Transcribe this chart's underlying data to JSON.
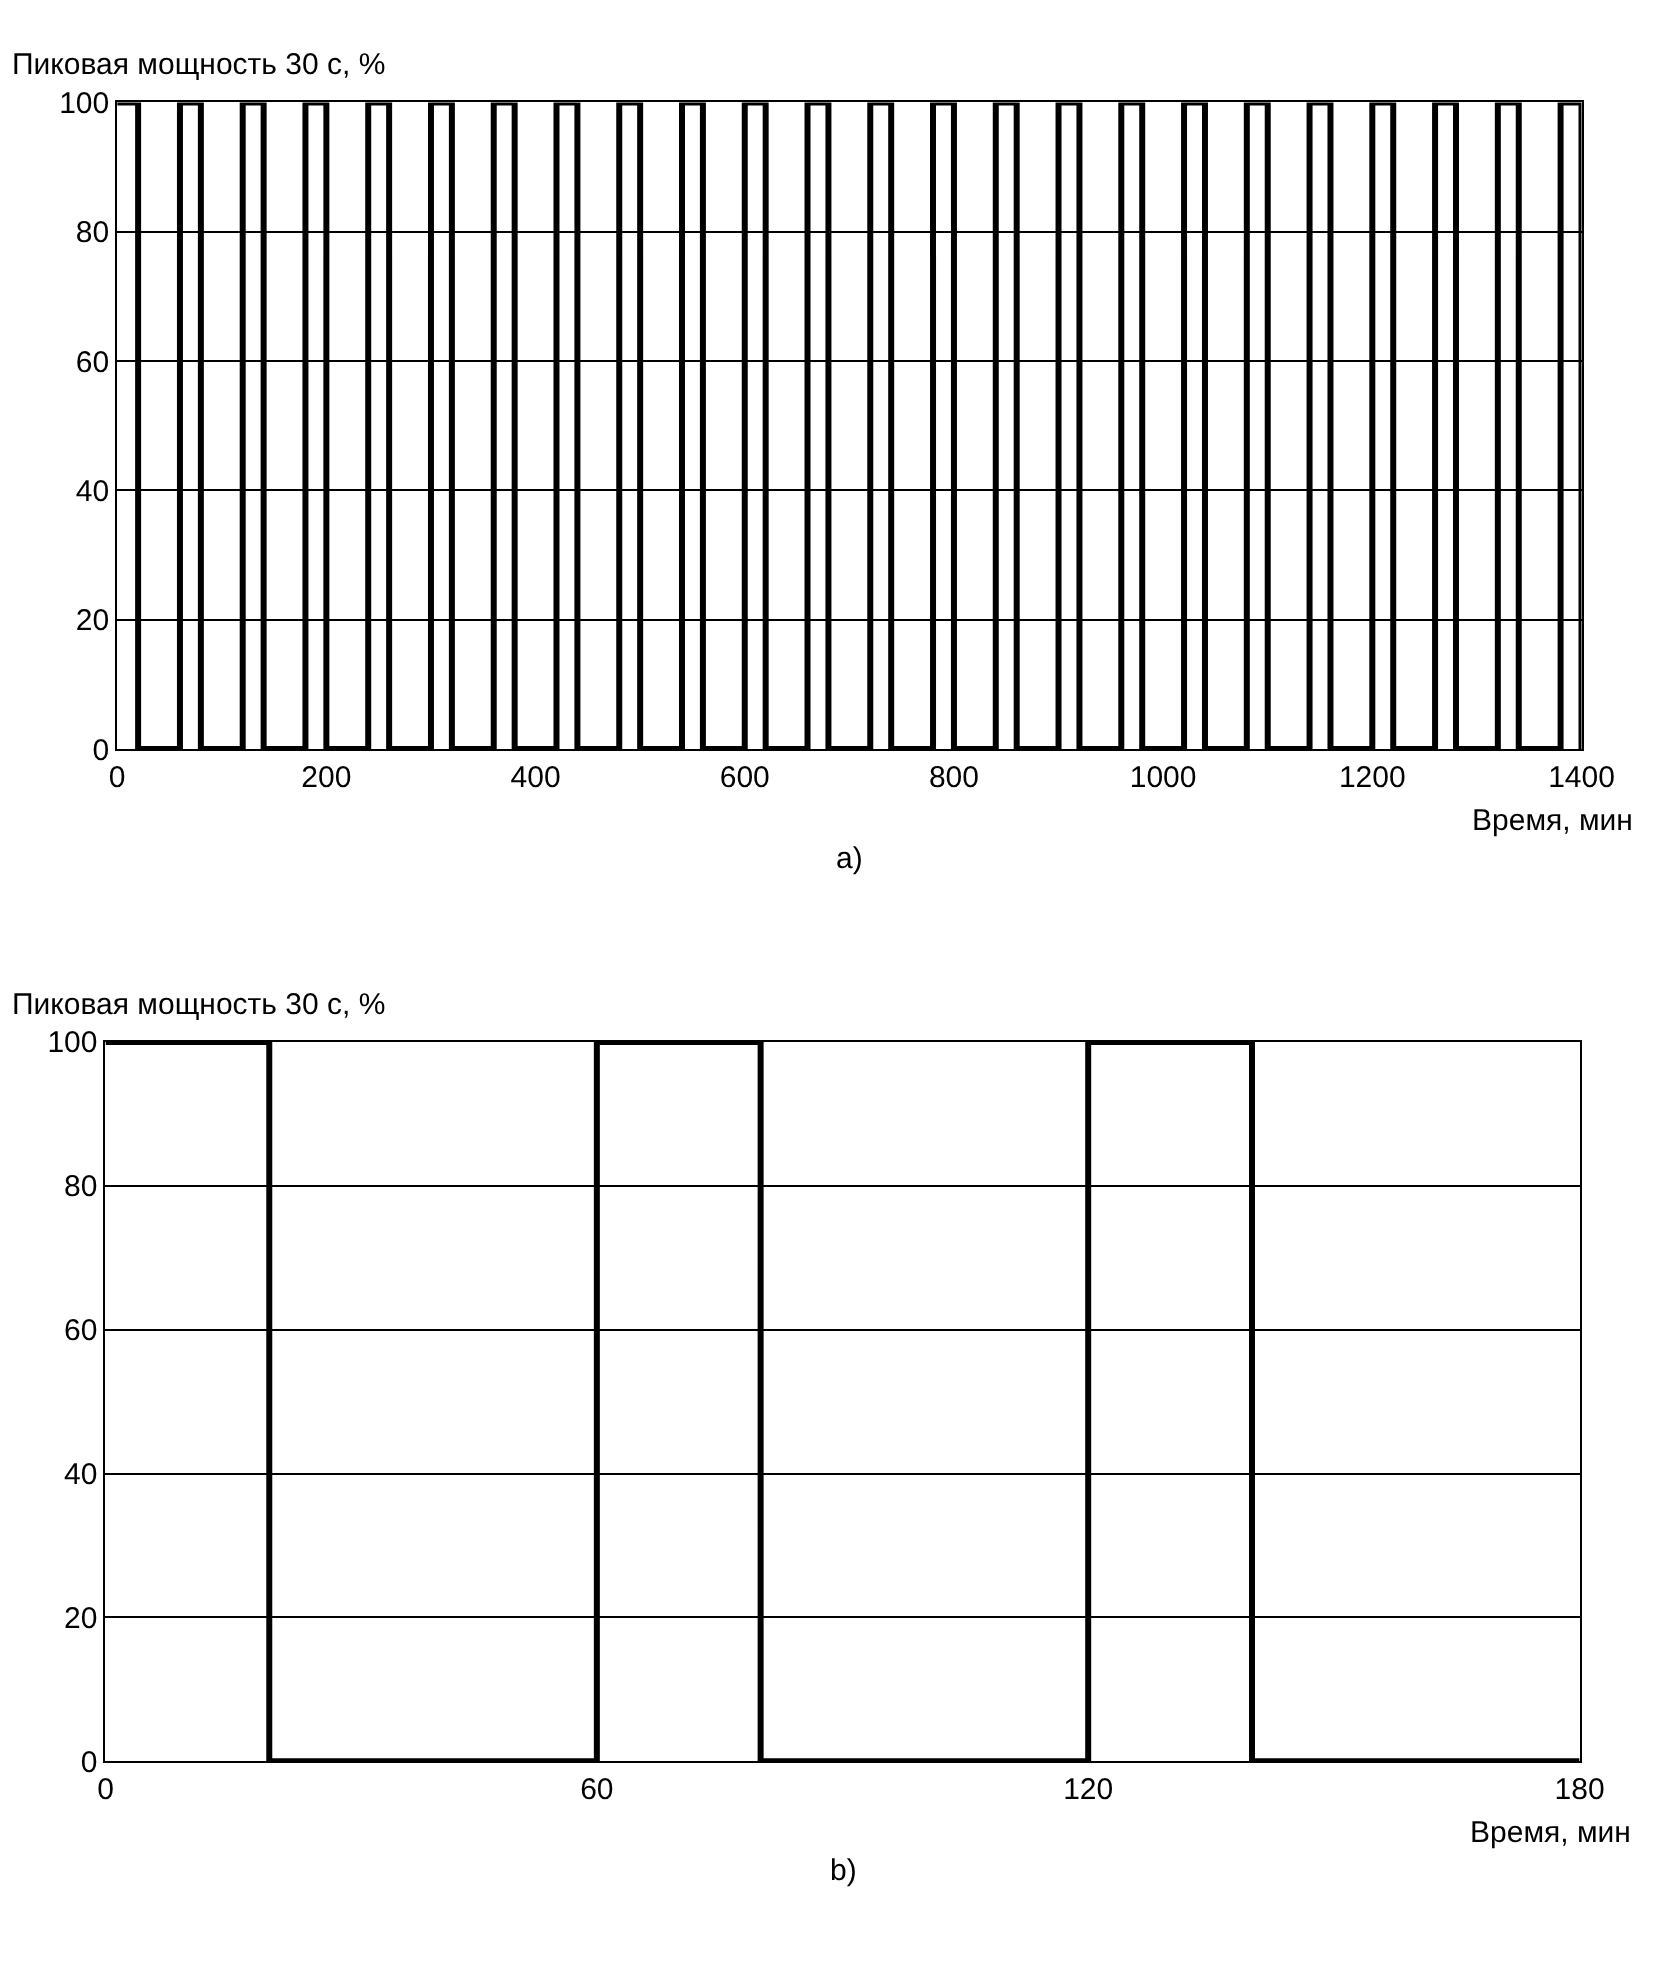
{
  "chart_data": [
    {
      "type": "step",
      "ylabel": "Пиковая мощность 30 с, %",
      "xlabel": "Время, мин",
      "annotations": [
        "a)"
      ],
      "series": [
        {
          "color": "#000000",
          "x": [
            0,
            20,
            60,
            80,
            120,
            140,
            180,
            200,
            240,
            260,
            300,
            320,
            360,
            380,
            420,
            440,
            480,
            500,
            540,
            560,
            600,
            620,
            660,
            680,
            720,
            740,
            780,
            800,
            840,
            860,
            900,
            920,
            960,
            980,
            1020,
            1040,
            1080,
            1100,
            1140,
            1160,
            1200,
            1220,
            1260,
            1280,
            1320,
            1340,
            1380,
            1400
          ],
          "values": [
            100,
            0,
            100,
            0,
            100,
            0,
            100,
            0,
            100,
            0,
            100,
            0,
            100,
            0,
            100,
            0,
            100,
            0,
            100,
            0,
            100,
            0,
            100,
            0,
            100,
            0,
            100,
            0,
            100,
            0,
            100,
            0,
            100,
            0,
            100,
            0,
            100,
            0,
            100,
            0,
            100,
            0,
            100,
            0,
            100,
            0,
            100,
            0
          ]
        }
      ],
      "xlim": [
        0,
        1400
      ],
      "xticks": [
        0,
        200,
        400,
        600,
        800,
        1000,
        1200,
        1400
      ],
      "ylim": [
        0,
        100
      ],
      "yticks": [
        0,
        20,
        40,
        60,
        80,
        100
      ],
      "grid": "y"
    },
    {
      "type": "step",
      "ylabel": "Пиковая мощность 30 с, %",
      "xlabel": "Время, мин",
      "annotations": [
        "b)"
      ],
      "series": [
        {
          "color": "#000000",
          "x": [
            0,
            20,
            60,
            80,
            120,
            140,
            180
          ],
          "values": [
            100,
            0,
            100,
            0,
            100,
            0,
            0
          ]
        }
      ],
      "xlim": [
        0,
        180
      ],
      "xticks": [
        0,
        60,
        120,
        180
      ],
      "ylim": [
        0,
        100
      ],
      "yticks": [
        0,
        20,
        40,
        60,
        80,
        100
      ],
      "grid": "y"
    }
  ]
}
